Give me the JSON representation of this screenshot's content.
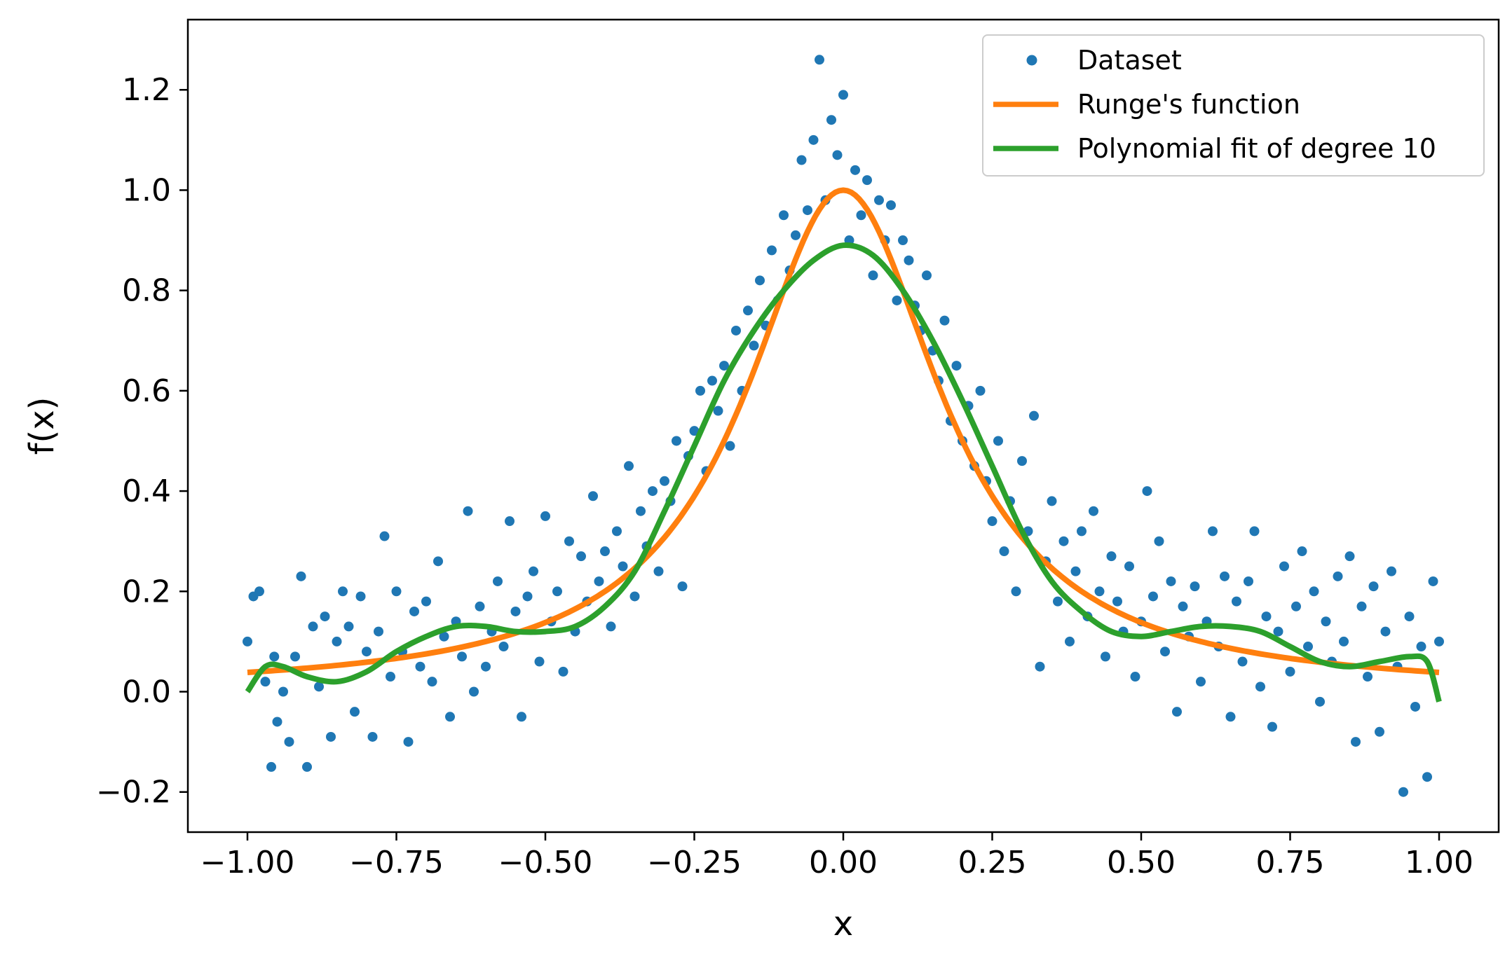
{
  "chart_data": {
    "type": "scatter",
    "title": "",
    "xlabel": "x",
    "ylabel": "f(x)",
    "xlim": [
      -1.1,
      1.1
    ],
    "ylim": [
      -0.28,
      1.34
    ],
    "x_ticks": [
      -1.0,
      -0.75,
      -0.5,
      -0.25,
      0.0,
      0.25,
      0.5,
      0.75,
      1.0
    ],
    "x_tick_labels": [
      "−1.00",
      "−0.75",
      "−0.50",
      "−0.25",
      "0.00",
      "0.25",
      "0.50",
      "0.75",
      "1.00"
    ],
    "y_ticks": [
      -0.2,
      0.0,
      0.2,
      0.4,
      0.6,
      0.8,
      1.0,
      1.2
    ],
    "y_tick_labels": [
      "−0.2",
      "0.0",
      "0.2",
      "0.4",
      "0.6",
      "0.8",
      "1.0",
      "1.2"
    ],
    "grid": false,
    "legend": {
      "placement": "top-right",
      "entries": [
        "Dataset",
        "Runge's function",
        "Polynomial fit of degree 10"
      ]
    },
    "series": [
      {
        "name": "Dataset",
        "kind": "scatter",
        "color": "#1f77b4",
        "points": [
          [
            -1.0,
            0.1
          ],
          [
            -0.99,
            0.19
          ],
          [
            -0.98,
            0.2
          ],
          [
            -0.97,
            0.02
          ],
          [
            -0.96,
            -0.15
          ],
          [
            -0.955,
            0.07
          ],
          [
            -0.95,
            -0.06
          ],
          [
            -0.94,
            0.0
          ],
          [
            -0.93,
            -0.1
          ],
          [
            -0.92,
            0.07
          ],
          [
            -0.91,
            0.23
          ],
          [
            -0.9,
            -0.15
          ],
          [
            -0.89,
            0.13
          ],
          [
            -0.88,
            0.01
          ],
          [
            -0.87,
            0.15
          ],
          [
            -0.86,
            -0.09
          ],
          [
            -0.85,
            0.1
          ],
          [
            -0.84,
            0.2
          ],
          [
            -0.83,
            0.13
          ],
          [
            -0.82,
            -0.04
          ],
          [
            -0.81,
            0.19
          ],
          [
            -0.8,
            0.08
          ],
          [
            -0.79,
            -0.09
          ],
          [
            -0.78,
            0.12
          ],
          [
            -0.77,
            0.31
          ],
          [
            -0.76,
            0.03
          ],
          [
            -0.75,
            0.2
          ],
          [
            -0.74,
            0.08
          ],
          [
            -0.73,
            -0.1
          ],
          [
            -0.72,
            0.16
          ],
          [
            -0.71,
            0.05
          ],
          [
            -0.7,
            0.18
          ],
          [
            -0.69,
            0.02
          ],
          [
            -0.68,
            0.26
          ],
          [
            -0.67,
            0.11
          ],
          [
            -0.66,
            -0.05
          ],
          [
            -0.65,
            0.14
          ],
          [
            -0.64,
            0.07
          ],
          [
            -0.63,
            0.36
          ],
          [
            -0.62,
            0.0
          ],
          [
            -0.61,
            0.17
          ],
          [
            -0.6,
            0.05
          ],
          [
            -0.59,
            0.12
          ],
          [
            -0.58,
            0.22
          ],
          [
            -0.57,
            0.09
          ],
          [
            -0.56,
            0.34
          ],
          [
            -0.55,
            0.16
          ],
          [
            -0.54,
            -0.05
          ],
          [
            -0.53,
            0.19
          ],
          [
            -0.52,
            0.24
          ],
          [
            -0.51,
            0.06
          ],
          [
            -0.5,
            0.35
          ],
          [
            -0.49,
            0.14
          ],
          [
            -0.48,
            0.2
          ],
          [
            -0.47,
            0.04
          ],
          [
            -0.46,
            0.3
          ],
          [
            -0.45,
            0.12
          ],
          [
            -0.44,
            0.27
          ],
          [
            -0.43,
            0.18
          ],
          [
            -0.42,
            0.39
          ],
          [
            -0.41,
            0.22
          ],
          [
            -0.4,
            0.28
          ],
          [
            -0.39,
            0.13
          ],
          [
            -0.38,
            0.32
          ],
          [
            -0.37,
            0.25
          ],
          [
            -0.36,
            0.45
          ],
          [
            -0.35,
            0.19
          ],
          [
            -0.34,
            0.36
          ],
          [
            -0.33,
            0.29
          ],
          [
            -0.32,
            0.4
          ],
          [
            -0.31,
            0.24
          ],
          [
            -0.3,
            0.42
          ],
          [
            -0.29,
            0.38
          ],
          [
            -0.28,
            0.5
          ],
          [
            -0.27,
            0.21
          ],
          [
            -0.26,
            0.47
          ],
          [
            -0.25,
            0.52
          ],
          [
            -0.24,
            0.6
          ],
          [
            -0.23,
            0.44
          ],
          [
            -0.22,
            0.62
          ],
          [
            -0.21,
            0.56
          ],
          [
            -0.2,
            0.65
          ],
          [
            -0.19,
            0.49
          ],
          [
            -0.18,
            0.72
          ],
          [
            -0.17,
            0.6
          ],
          [
            -0.16,
            0.76
          ],
          [
            -0.15,
            0.69
          ],
          [
            -0.14,
            0.82
          ],
          [
            -0.13,
            0.73
          ],
          [
            -0.12,
            0.88
          ],
          [
            -0.11,
            0.78
          ],
          [
            -0.1,
            0.95
          ],
          [
            -0.09,
            0.84
          ],
          [
            -0.08,
            0.91
          ],
          [
            -0.07,
            1.06
          ],
          [
            -0.06,
            0.96
          ],
          [
            -0.05,
            1.1
          ],
          [
            -0.04,
            1.26
          ],
          [
            -0.03,
            0.98
          ],
          [
            -0.02,
            1.14
          ],
          [
            -0.01,
            1.07
          ],
          [
            0.0,
            1.19
          ],
          [
            0.01,
            0.9
          ],
          [
            0.02,
            1.04
          ],
          [
            0.03,
            0.95
          ],
          [
            0.04,
            1.02
          ],
          [
            0.05,
            0.83
          ],
          [
            0.06,
            0.98
          ],
          [
            0.07,
            0.9
          ],
          [
            0.08,
            0.97
          ],
          [
            0.09,
            0.78
          ],
          [
            0.1,
            0.9
          ],
          [
            0.11,
            0.86
          ],
          [
            0.12,
            0.77
          ],
          [
            0.13,
            0.72
          ],
          [
            0.14,
            0.83
          ],
          [
            0.15,
            0.68
          ],
          [
            0.16,
            0.62
          ],
          [
            0.17,
            0.74
          ],
          [
            0.18,
            0.54
          ],
          [
            0.19,
            0.65
          ],
          [
            0.2,
            0.5
          ],
          [
            0.21,
            0.57
          ],
          [
            0.22,
            0.45
          ],
          [
            0.23,
            0.6
          ],
          [
            0.24,
            0.42
          ],
          [
            0.25,
            0.34
          ],
          [
            0.26,
            0.5
          ],
          [
            0.27,
            0.28
          ],
          [
            0.28,
            0.38
          ],
          [
            0.29,
            0.2
          ],
          [
            0.3,
            0.46
          ],
          [
            0.31,
            0.32
          ],
          [
            0.32,
            0.55
          ],
          [
            0.33,
            0.05
          ],
          [
            0.34,
            0.26
          ],
          [
            0.35,
            0.38
          ],
          [
            0.36,
            0.18
          ],
          [
            0.37,
            0.3
          ],
          [
            0.38,
            0.1
          ],
          [
            0.39,
            0.24
          ],
          [
            0.4,
            0.32
          ],
          [
            0.41,
            0.15
          ],
          [
            0.42,
            0.36
          ],
          [
            0.43,
            0.2
          ],
          [
            0.44,
            0.07
          ],
          [
            0.45,
            0.27
          ],
          [
            0.46,
            0.18
          ],
          [
            0.47,
            0.12
          ],
          [
            0.48,
            0.25
          ],
          [
            0.49,
            0.03
          ],
          [
            0.5,
            0.14
          ],
          [
            0.51,
            0.4
          ],
          [
            0.52,
            0.19
          ],
          [
            0.53,
            0.3
          ],
          [
            0.54,
            0.08
          ],
          [
            0.55,
            0.22
          ],
          [
            0.56,
            -0.04
          ],
          [
            0.57,
            0.17
          ],
          [
            0.58,
            0.11
          ],
          [
            0.59,
            0.21
          ],
          [
            0.6,
            0.02
          ],
          [
            0.61,
            0.14
          ],
          [
            0.62,
            0.32
          ],
          [
            0.63,
            0.09
          ],
          [
            0.64,
            0.23
          ],
          [
            0.65,
            -0.05
          ],
          [
            0.66,
            0.18
          ],
          [
            0.67,
            0.06
          ],
          [
            0.68,
            0.22
          ],
          [
            0.69,
            0.32
          ],
          [
            0.7,
            0.01
          ],
          [
            0.71,
            0.15
          ],
          [
            0.72,
            -0.07
          ],
          [
            0.73,
            0.12
          ],
          [
            0.74,
            0.25
          ],
          [
            0.75,
            0.04
          ],
          [
            0.76,
            0.17
          ],
          [
            0.77,
            0.28
          ],
          [
            0.78,
            0.09
          ],
          [
            0.79,
            0.2
          ],
          [
            0.8,
            -0.02
          ],
          [
            0.81,
            0.14
          ],
          [
            0.82,
            0.06
          ],
          [
            0.83,
            0.23
          ],
          [
            0.84,
            0.1
          ],
          [
            0.85,
            0.27
          ],
          [
            0.86,
            -0.1
          ],
          [
            0.87,
            0.17
          ],
          [
            0.88,
            0.03
          ],
          [
            0.89,
            0.21
          ],
          [
            0.9,
            -0.08
          ],
          [
            0.91,
            0.12
          ],
          [
            0.92,
            0.24
          ],
          [
            0.93,
            0.05
          ],
          [
            0.94,
            -0.2
          ],
          [
            0.95,
            0.15
          ],
          [
            0.96,
            -0.03
          ],
          [
            0.97,
            0.09
          ],
          [
            0.98,
            -0.17
          ],
          [
            0.99,
            0.22
          ],
          [
            1.0,
            0.1
          ]
        ]
      },
      {
        "name": "Runge's function",
        "kind": "line",
        "color": "#ff7f0e",
        "function": "1 / (1 + 25 x^2)",
        "x_range": [
          -1.0,
          1.0
        ]
      },
      {
        "name": "Polynomial fit of degree 10",
        "kind": "line",
        "color": "#2ca02c",
        "x": [
          -1.0,
          -0.97,
          -0.94,
          -0.9,
          -0.85,
          -0.8,
          -0.75,
          -0.7,
          -0.65,
          -0.6,
          -0.55,
          -0.5,
          -0.45,
          -0.4,
          -0.35,
          -0.3,
          -0.25,
          -0.2,
          -0.15,
          -0.1,
          -0.05,
          0.0,
          0.05,
          0.1,
          0.15,
          0.2,
          0.25,
          0.3,
          0.35,
          0.4,
          0.45,
          0.5,
          0.55,
          0.6,
          0.65,
          0.7,
          0.75,
          0.8,
          0.85,
          0.9,
          0.95,
          0.98,
          1.0
        ],
        "y": [
          0.0,
          0.05,
          0.05,
          0.03,
          0.02,
          0.04,
          0.08,
          0.11,
          0.13,
          0.13,
          0.12,
          0.12,
          0.13,
          0.17,
          0.24,
          0.36,
          0.49,
          0.62,
          0.72,
          0.8,
          0.86,
          0.89,
          0.87,
          0.8,
          0.7,
          0.58,
          0.45,
          0.32,
          0.22,
          0.16,
          0.12,
          0.11,
          0.12,
          0.13,
          0.13,
          0.12,
          0.09,
          0.06,
          0.05,
          0.06,
          0.07,
          0.06,
          -0.02
        ]
      }
    ]
  }
}
